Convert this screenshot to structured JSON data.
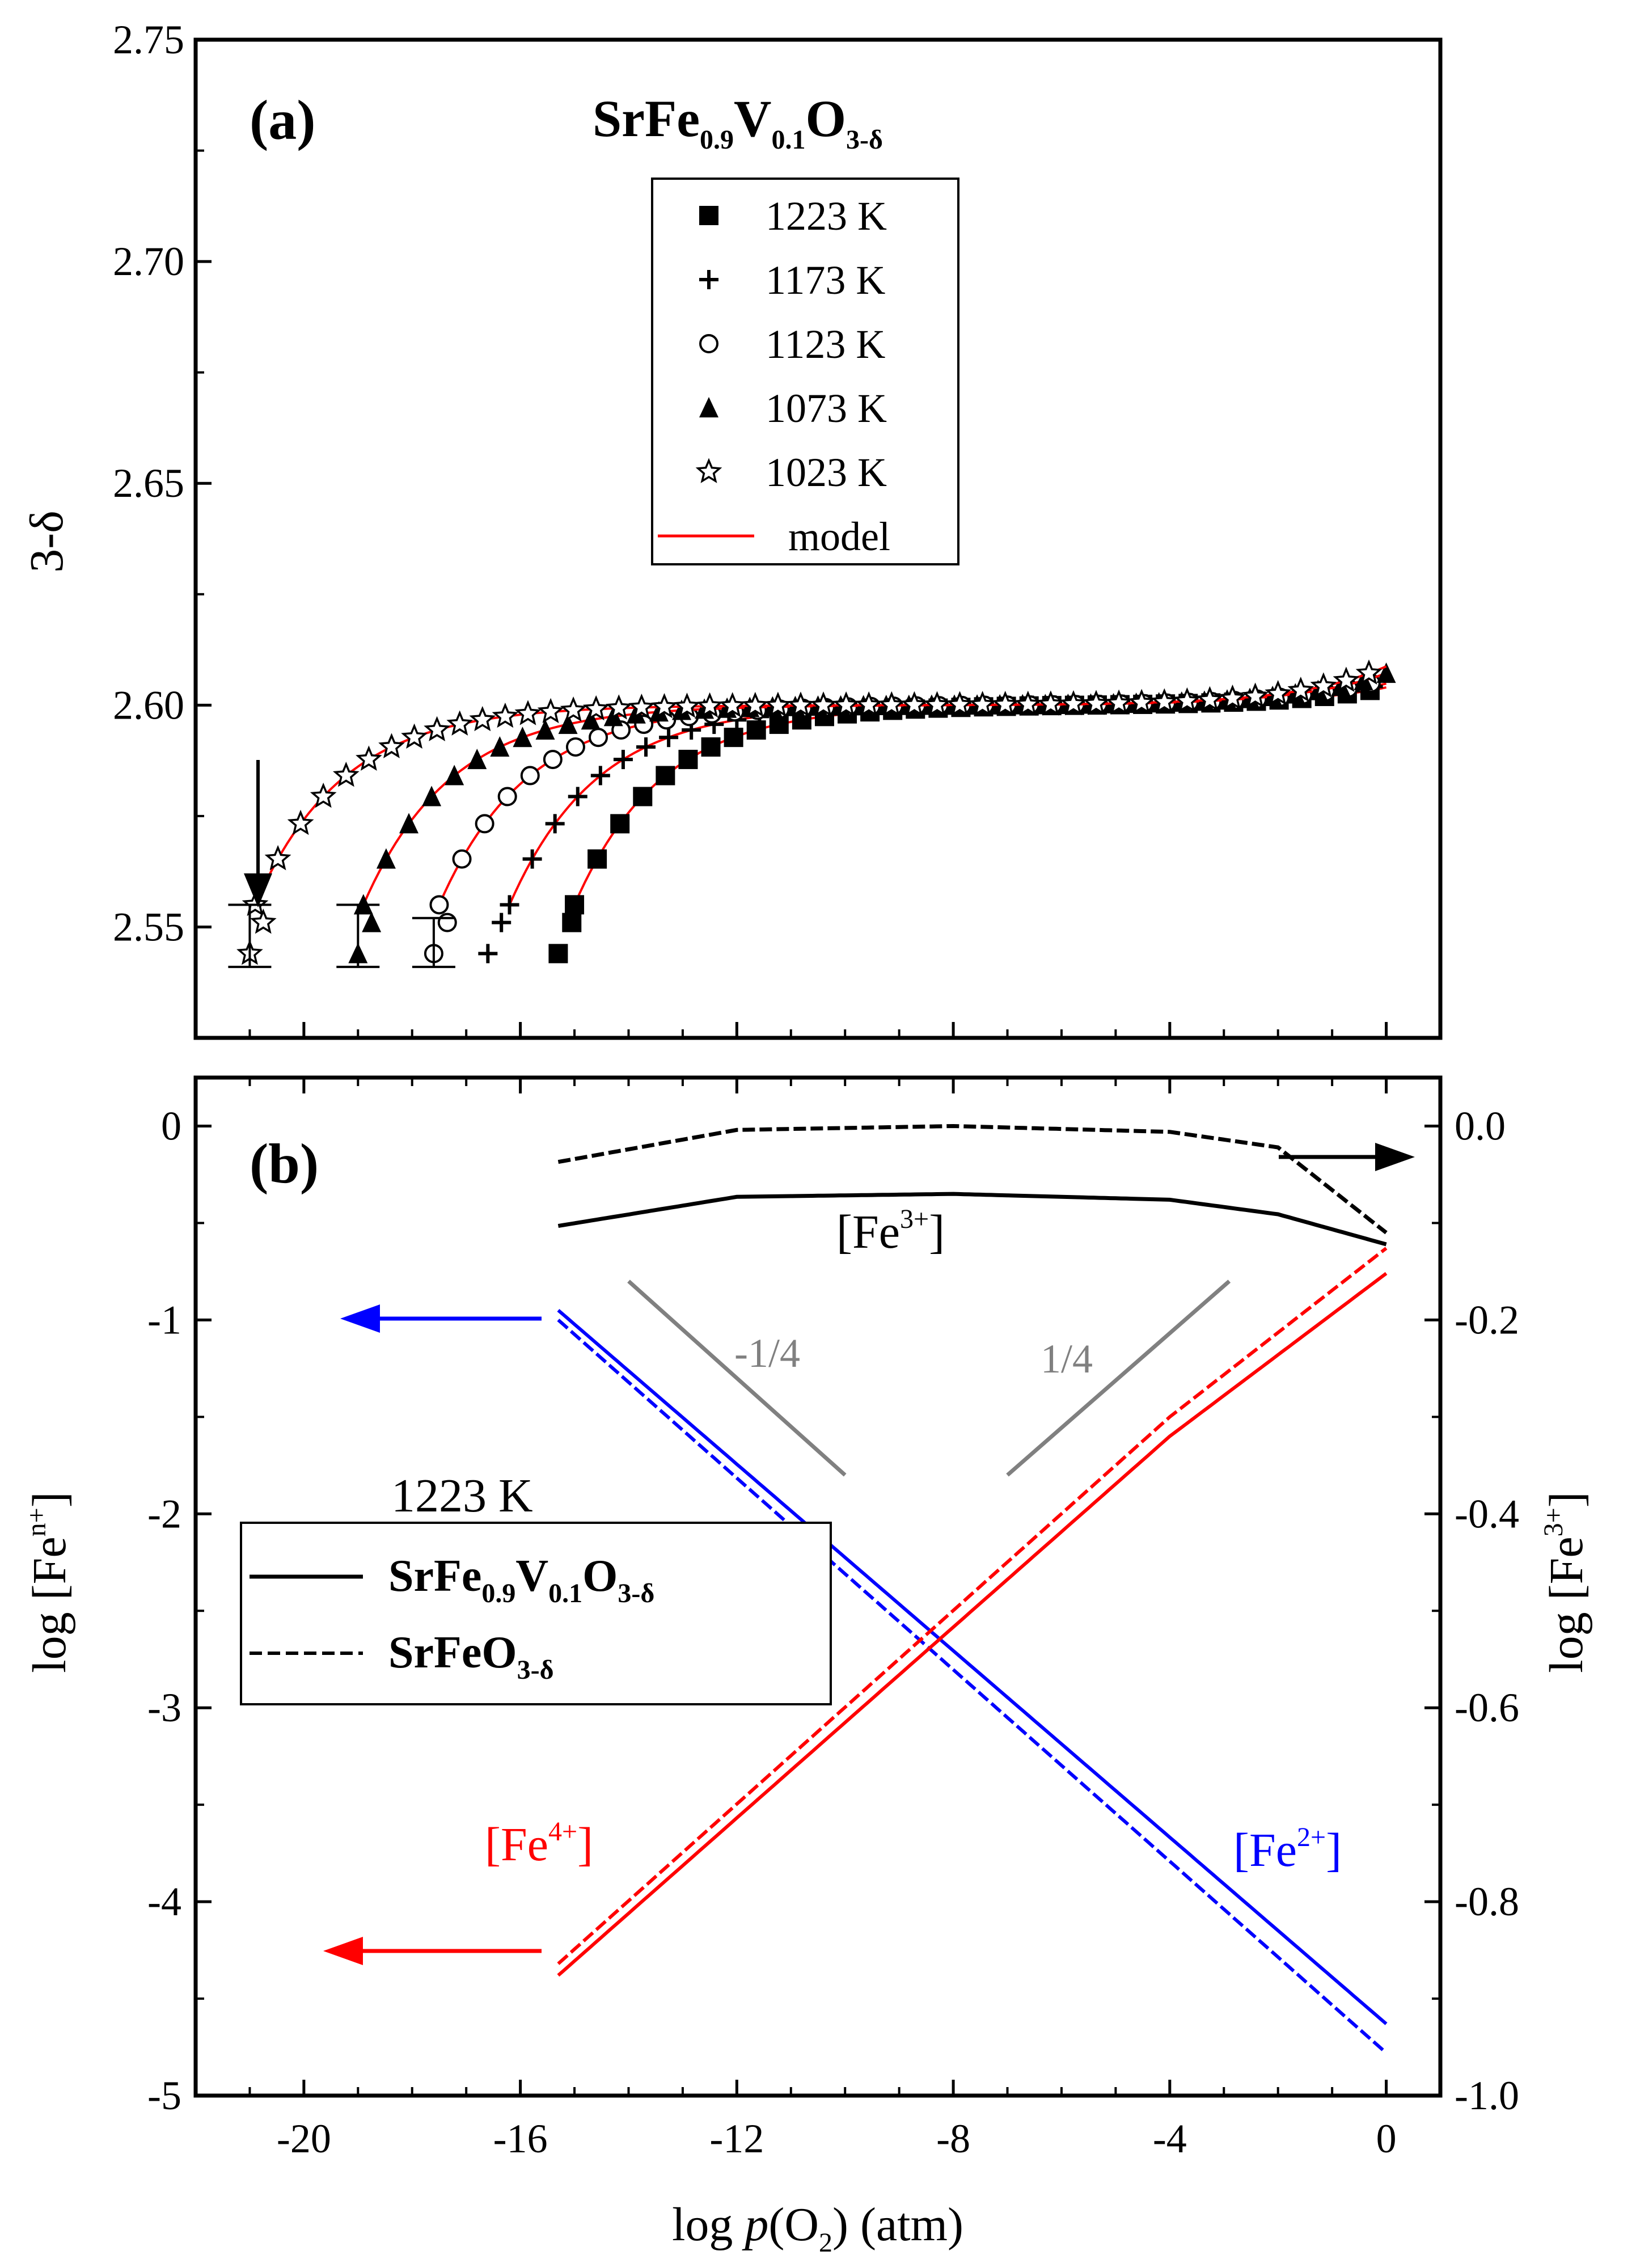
{
  "chart_data": [
    {
      "type": "scatter",
      "panel": "(a)",
      "title": "SrFe0.9V0.1O3-δ",
      "title_parts": {
        "base": "SrFe",
        "sub1": "0.9",
        "mid": "V",
        "sub2": "0.1",
        "mid2": "O",
        "sub3": "3-δ"
      },
      "xlabel": "log p(O2) (atm)",
      "ylabel": "3-δ",
      "xlim": [
        -22,
        1
      ],
      "ylim": [
        2.525,
        2.75
      ],
      "xticks": [
        -20,
        -16,
        -12,
        -8,
        -4,
        0
      ],
      "yticks": [
        2.55,
        2.6,
        2.65,
        2.7,
        2.75
      ],
      "ytick_labels": [
        "2.55",
        "2.60",
        "2.65",
        "2.70",
        "2.75"
      ],
      "legend_position": "top-center",
      "series": [
        {
          "name": "1223 K",
          "label": "1223 K",
          "marker": "square",
          "x_range": [
            -15.3,
            0
          ],
          "center": -4.5,
          "floor": 2.555,
          "start": -15
        },
        {
          "name": "1173 K",
          "label": "1173 K",
          "marker": "plus",
          "x_range": [
            -16.6,
            0
          ],
          "center": -6.0,
          "floor": 2.555,
          "start": -16.2
        },
        {
          "name": "1123 K",
          "label": "1123 K",
          "marker": "circle",
          "x_range": [
            -17.6,
            0
          ],
          "center": -7.5,
          "floor": 2.555,
          "start": -17.5
        },
        {
          "name": "1073 K",
          "label": "1073 K",
          "marker": "triangle",
          "x_range": [
            -19.0,
            0
          ],
          "center": -9.0,
          "floor": 2.555,
          "start": -18.9
        },
        {
          "name": "1023 K",
          "label": "1023 K",
          "marker": "star",
          "x_range": [
            -21.0,
            0
          ],
          "center": -10.5,
          "floor": 2.555,
          "start": -20.9
        }
      ],
      "model_label": "model",
      "error_bars": [
        {
          "x": -21.0,
          "low": 2.541,
          "high": 2.555
        },
        {
          "x": -19.0,
          "low": 2.541,
          "high": 2.555
        },
        {
          "x": -17.6,
          "low": 2.541,
          "high": 2.552
        }
      ],
      "annotation_arrow": {
        "x": -21.0,
        "from_y": 2.589,
        "to_y": 2.556
      }
    },
    {
      "type": "line",
      "panel": "(b)",
      "temperature_label": "1223 K",
      "xlabel": "log p(O2) (atm)",
      "ylabel_left": "log [Fen+]",
      "ylabel_right": "log [Fe3+]",
      "xlim": [
        -22,
        1
      ],
      "ylim_left": [
        -5,
        0.25
      ],
      "ylim_right": [
        -1.0,
        0.05
      ],
      "xticks": [
        -20,
        -16,
        -12,
        -8,
        -4,
        0
      ],
      "xtick_labels": [
        "-20",
        "-16",
        "-12",
        "-8",
        "-4",
        "0"
      ],
      "yticks_left": [
        -5,
        -4,
        -3,
        -2,
        -1,
        0
      ],
      "ytick_labels_left": [
        "-5",
        "-4",
        "-3",
        "-2",
        "-1",
        "0"
      ],
      "yticks_right": [
        -1.0,
        -0.8,
        -0.6,
        -0.4,
        -0.2,
        0.0
      ],
      "ytick_labels_right": [
        "-1.0",
        "-0.8",
        "-0.6",
        "-0.4",
        "-0.2",
        "0.0"
      ],
      "series": [
        {
          "name": "[Fe3+] SrFe0.9V0.1O3-δ",
          "axis": "right",
          "style": "solid",
          "color": "#000000",
          "x": [
            -15.3,
            -12,
            -8,
            -4,
            -2,
            0
          ],
          "y": [
            -0.103,
            -0.073,
            -0.07,
            -0.076,
            -0.091,
            -0.122
          ]
        },
        {
          "name": "[Fe3+] SrFeO3-δ",
          "axis": "right",
          "style": "dashed",
          "color": "#000000",
          "x": [
            -15.3,
            -12,
            -8,
            -4,
            -2,
            0
          ],
          "y": [
            -0.037,
            -0.004,
            0.0,
            -0.006,
            -0.022,
            -0.11
          ]
        },
        {
          "name": "[Fe2+] SrFe0.9V0.1O3-δ",
          "axis": "left",
          "style": "solid",
          "color": "#0000ff",
          "x": [
            -15.3,
            0
          ],
          "y": [
            -0.95,
            -4.63
          ]
        },
        {
          "name": "[Fe2+] SrFeO3-δ",
          "axis": "left",
          "style": "dashed",
          "color": "#0000ff",
          "x": [
            -15.3,
            0
          ],
          "y": [
            -1.0,
            -4.78
          ]
        },
        {
          "name": "[Fe4+] SrFe0.9V0.1O3-δ",
          "axis": "left",
          "style": "solid",
          "color": "#ff0000",
          "x": [
            -15.3,
            -4,
            0
          ],
          "y": [
            -4.38,
            -1.6,
            -0.76
          ]
        },
        {
          "name": "[Fe4+] SrFeO3-δ",
          "axis": "left",
          "style": "dashed",
          "color": "#ff0000",
          "x": [
            -15.3,
            -4,
            0
          ],
          "y": [
            -4.32,
            -1.5,
            -0.63
          ]
        }
      ],
      "slope_guides": [
        {
          "label": "-1/4",
          "x": [
            -14.0,
            -10.0
          ],
          "y": [
            -0.8,
            -1.8
          ]
        },
        {
          "label": "1/4",
          "x": [
            -7.0,
            -2.9
          ],
          "y": [
            -1.8,
            -0.8
          ]
        }
      ],
      "labels": {
        "fe3": "[Fe3+]",
        "fe2": "[Fe2+]",
        "fe4": "[Fe4+]"
      },
      "legend": [
        {
          "label": "SrFe0.9V0.1O3-δ",
          "style": "solid"
        },
        {
          "label": "SrFeO3-δ",
          "style": "dashed"
        }
      ],
      "legend_position": "center-left",
      "colors": {
        "fe2": "#0000ff",
        "fe4": "#ff0000",
        "slope": "#808080"
      }
    }
  ],
  "text": {
    "panel_a": "(a)",
    "panel_b": "(b)",
    "title_base": "SrFe",
    "title_sub1": "0.9",
    "title_mid": "V",
    "title_sub2": "0.1",
    "title_mid2": "O",
    "title_sub3": "3-δ",
    "ylabel_a": "3-δ",
    "ylabel_b_base": "log [Fe",
    "ylabel_b_sup": "n+",
    "ylabel_b_end": "]",
    "ylabel_r_base": "log [Fe",
    "ylabel_r_sup": "3+",
    "ylabel_r_end": "]",
    "xlabel_base": "log ",
    "xlabel_p": "p",
    "xlabel_paren": "(O",
    "xlabel_sub": "2",
    "xlabel_end": ") (atm)",
    "temp_b": "1223 K",
    "fe3_base": "[Fe",
    "fe3_sup": "3+",
    "fe3_end": "]",
    "fe2_base": "[Fe",
    "fe2_sup": "2+",
    "fe2_end": "]",
    "fe4_base": "[Fe",
    "fe4_sup": "4+",
    "fe4_end": "]",
    "slope_neg": "-1/4",
    "slope_pos": "1/4",
    "leg_b1_base": "SrFe",
    "leg_b1_sub1": "0.9",
    "leg_b1_mid": "V",
    "leg_b1_sub2": "0.1",
    "leg_b1_mid2": "O",
    "leg_b1_sub3": "3-δ",
    "leg_b2_base": "SrFeO",
    "leg_b2_sub": "3-δ"
  }
}
